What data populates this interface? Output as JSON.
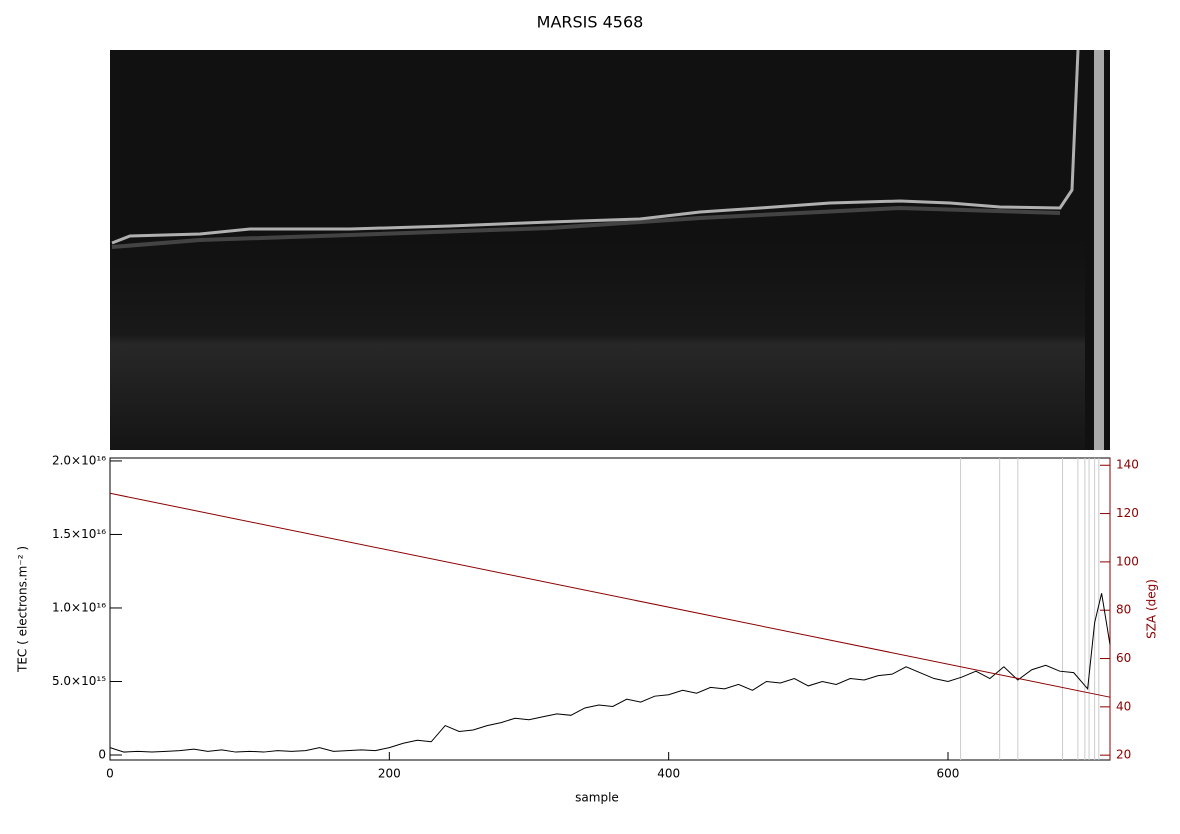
{
  "chart_data": {
    "type": "line",
    "title": "MARSIS 4568",
    "xlabel": "sample",
    "ylabel": "TEC ( electrons.m⁻² )",
    "y2label": "SZA (deg)",
    "xlim": [
      0,
      716
    ],
    "xticks": [
      0,
      200,
      400,
      600
    ],
    "ylim": [
      -340000000000000.0,
      2.02e+16
    ],
    "yticks": [
      {
        "value": 0,
        "label": "0"
      },
      {
        "value": 5000000000000000.0,
        "label": "5.0×10¹⁵"
      },
      {
        "value": 1e+16,
        "label": "1.0×10¹⁶"
      },
      {
        "value": 1.5e+16,
        "label": "1.5×10¹⁶"
      },
      {
        "value": 2e+16,
        "label": "2.0×10¹⁶"
      }
    ],
    "y2lim": [
      18,
      143
    ],
    "y2ticks": [
      20,
      40,
      60,
      80,
      100,
      120,
      140
    ],
    "y2color": "#8b0000",
    "vlines": [
      609,
      637,
      650,
      682,
      693,
      698,
      701,
      705,
      708
    ],
    "series": [
      {
        "color": "#000000",
        "axis": "y",
        "x": [
          0,
          10,
          20,
          30,
          40,
          50,
          60,
          70,
          80,
          90,
          100,
          110,
          120,
          130,
          140,
          150,
          160,
          170,
          180,
          190,
          200,
          210,
          220,
          230,
          240,
          250,
          260,
          270,
          280,
          290,
          300,
          310,
          320,
          330,
          340,
          350,
          360,
          370,
          380,
          390,
          400,
          410,
          420,
          430,
          440,
          450,
          460,
          470,
          480,
          490,
          500,
          510,
          520,
          530,
          540,
          550,
          560,
          570,
          580,
          590,
          600,
          610,
          620,
          630,
          640,
          650,
          660,
          670,
          680,
          690,
          700,
          705,
          710,
          716
        ],
        "values": [
          500000000000000.0,
          200000000000000.0,
          250000000000000.0,
          200000000000000.0,
          250000000000000.0,
          300000000000000.0,
          400000000000000.0,
          250000000000000.0,
          350000000000000.0,
          200000000000000.0,
          250000000000000.0,
          200000000000000.0,
          300000000000000.0,
          250000000000000.0,
          300000000000000.0,
          500000000000000.0,
          250000000000000.0,
          300000000000000.0,
          350000000000000.0,
          300000000000000.0,
          500000000000000.0,
          800000000000000.0,
          1000000000000000.0,
          900000000000000.0,
          2000000000000000.0,
          1600000000000000.0,
          1700000000000000.0,
          2000000000000000.0,
          2200000000000000.0,
          2500000000000000.0,
          2400000000000000.0,
          2600000000000000.0,
          2800000000000000.0,
          2700000000000000.0,
          3200000000000000.0,
          3400000000000000.0,
          3300000000000000.0,
          3800000000000000.0,
          3600000000000000.0,
          4000000000000000.0,
          4100000000000000.0,
          4400000000000000.0,
          4200000000000000.0,
          4600000000000000.0,
          4500000000000000.0,
          4800000000000000.0,
          4400000000000000.0,
          5000000000000000.0,
          4900000000000000.0,
          5200000000000000.0,
          4700000000000000.0,
          5000000000000000.0,
          4800000000000000.0,
          5200000000000000.0,
          5100000000000000.0,
          5400000000000000.0,
          5500000000000000.0,
          6000000000000000.0,
          5600000000000000.0,
          5200000000000000.0,
          5000000000000000.0,
          5300000000000000.0,
          5700000000000000.0,
          5200000000000000.0,
          6000000000000000.0,
          5100000000000000.0,
          5800000000000000.0,
          6100000000000000.0,
          5700000000000000.0,
          5600000000000000.0,
          4500000000000000.0,
          9000000000000000.0,
          1.1e+16,
          7500000000000000.0
        ]
      },
      {
        "color": "#8b0000",
        "axis": "y2",
        "x": [
          0,
          716
        ],
        "values": [
          128.4,
          44
        ]
      }
    ]
  }
}
